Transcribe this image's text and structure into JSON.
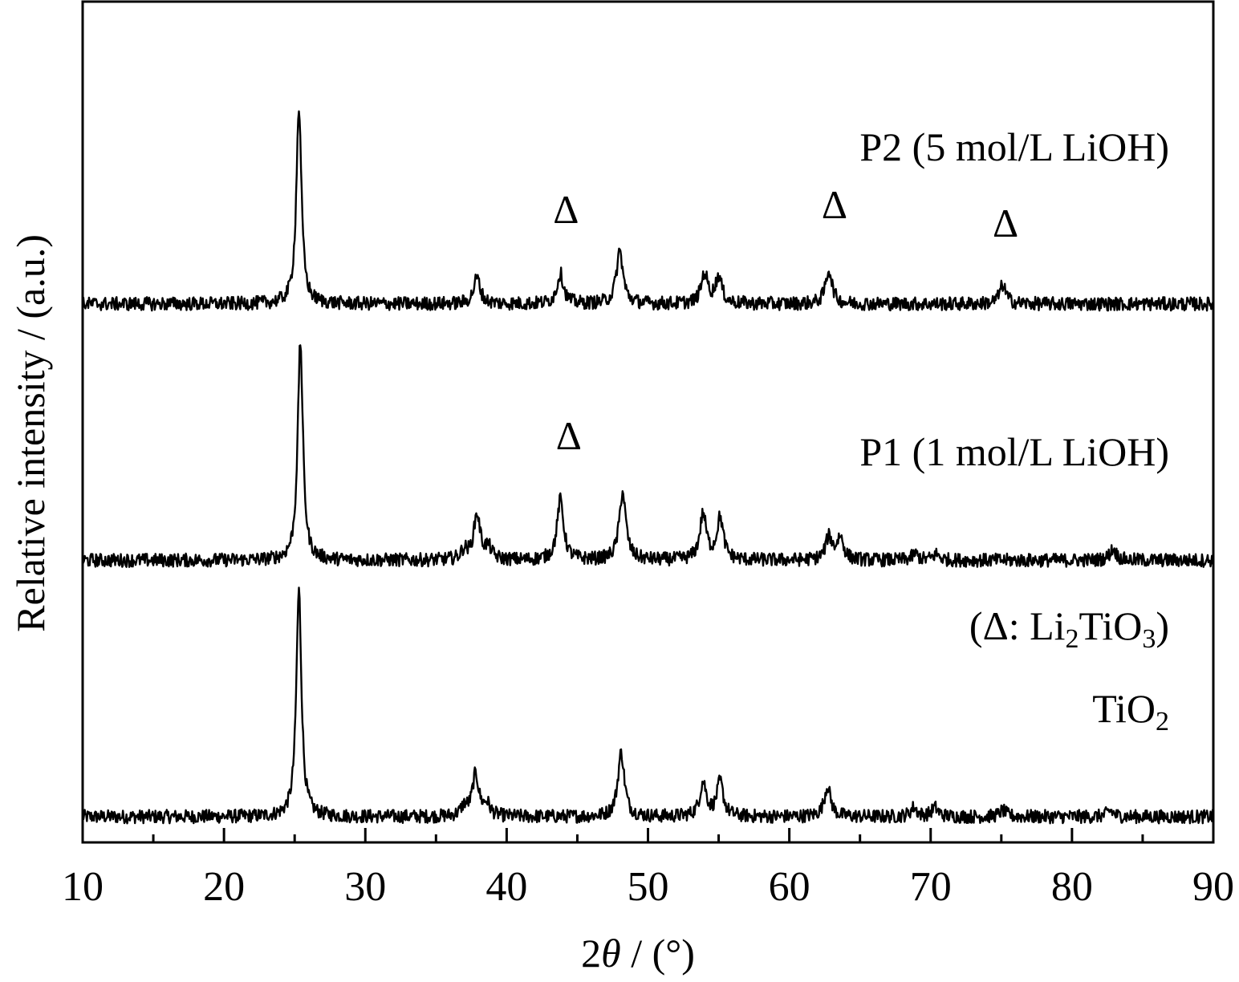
{
  "chart_data": {
    "type": "line",
    "xlabel_prefix": "2",
    "xlabel_symbol": "θ",
    "xlabel_suffix": " / (°)",
    "ylabel": "Relative intensity / (a.u.)",
    "xlim": [
      10,
      90
    ],
    "x_ticks": [
      10,
      20,
      30,
      40,
      50,
      60,
      70,
      80,
      90
    ],
    "x_minor_step": 5,
    "y_ticks": "none",
    "marker_symbol": "Δ",
    "legend_note": {
      "open": "(",
      "symbol": "Δ",
      "sep": ": Li",
      "sub1": "2",
      "mid": "TiO",
      "sub2": "3",
      "close": ")"
    },
    "series": [
      {
        "name": "TiO",
        "name_sub": "2",
        "baseline": 0,
        "peaks": [
          {
            "x": 25.3,
            "h": 3.0
          },
          {
            "x": 37.0,
            "h": 0.12
          },
          {
            "x": 37.8,
            "h": 0.55
          },
          {
            "x": 38.6,
            "h": 0.15
          },
          {
            "x": 48.1,
            "h": 0.85
          },
          {
            "x": 53.9,
            "h": 0.45
          },
          {
            "x": 55.1,
            "h": 0.45
          },
          {
            "x": 62.7,
            "h": 0.4
          },
          {
            "x": 68.8,
            "h": 0.12
          },
          {
            "x": 70.3,
            "h": 0.12
          },
          {
            "x": 75.1,
            "h": 0.08
          },
          {
            "x": 82.7,
            "h": 0.08
          }
        ]
      },
      {
        "name": "P1 (1 mol/L LiOH)",
        "baseline": 3.4,
        "peaks": [
          {
            "x": 25.4,
            "h": 2.9
          },
          {
            "x": 37.0,
            "h": 0.12
          },
          {
            "x": 37.9,
            "h": 0.6
          },
          {
            "x": 38.7,
            "h": 0.15
          },
          {
            "x": 43.8,
            "h": 0.8
          },
          {
            "x": 48.2,
            "h": 0.9
          },
          {
            "x": 53.9,
            "h": 0.6
          },
          {
            "x": 55.1,
            "h": 0.55
          },
          {
            "x": 62.8,
            "h": 0.3
          },
          {
            "x": 63.6,
            "h": 0.3
          },
          {
            "x": 68.9,
            "h": 0.08
          },
          {
            "x": 70.4,
            "h": 0.08
          },
          {
            "x": 82.9,
            "h": 0.15
          }
        ],
        "markers_x": [
          44.4
        ]
      },
      {
        "name": "P2 (5 mol/L LiOH)",
        "baseline": 6.8,
        "peaks": [
          {
            "x": 25.3,
            "h": 2.6
          },
          {
            "x": 37.9,
            "h": 0.35
          },
          {
            "x": 43.8,
            "h": 0.4
          },
          {
            "x": 48.0,
            "h": 0.7
          },
          {
            "x": 54.0,
            "h": 0.4
          },
          {
            "x": 55.0,
            "h": 0.35
          },
          {
            "x": 62.8,
            "h": 0.45
          },
          {
            "x": 75.1,
            "h": 0.25
          }
        ],
        "markers_x": [
          44.2,
          63.2,
          75.3
        ]
      }
    ]
  }
}
